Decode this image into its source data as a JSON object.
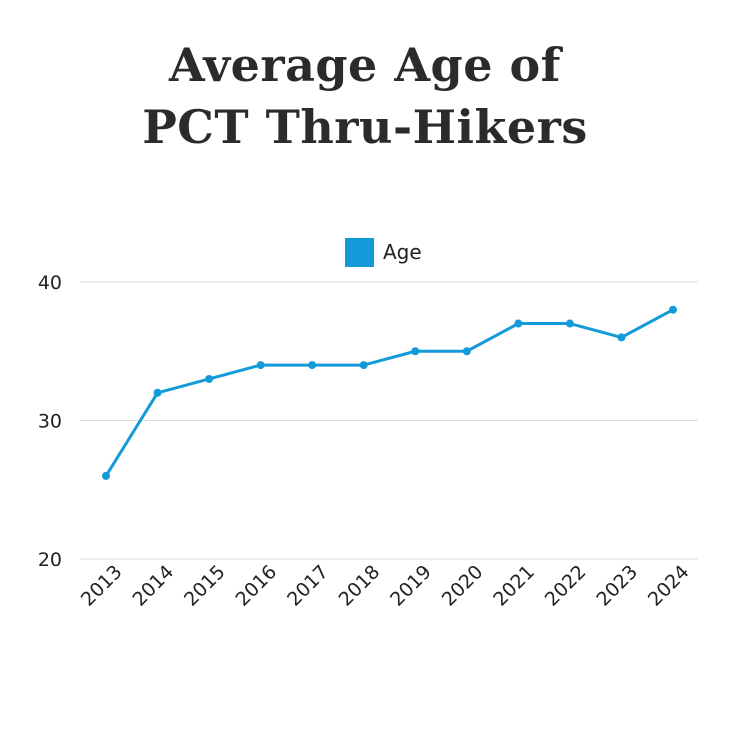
{
  "chart_data": {
    "type": "line",
    "title_lines": [
      "Average Age of",
      "PCT Thru-Hikers"
    ],
    "xlabel": "",
    "ylabel": "",
    "x": [
      "2013",
      "2014",
      "2015",
      "2016",
      "2017",
      "2018",
      "2019",
      "2020",
      "2021",
      "2022",
      "2023",
      "2024"
    ],
    "series": [
      {
        "name": "Age",
        "color": "#129bd8",
        "values": [
          26,
          32,
          33,
          34,
          34,
          34,
          35,
          35,
          37,
          37,
          36,
          38
        ]
      }
    ],
    "ylim": [
      20,
      40
    ],
    "yticks": [
      "20",
      "30",
      "40"
    ],
    "grid": "horizontal",
    "legend_position": "top-center"
  }
}
